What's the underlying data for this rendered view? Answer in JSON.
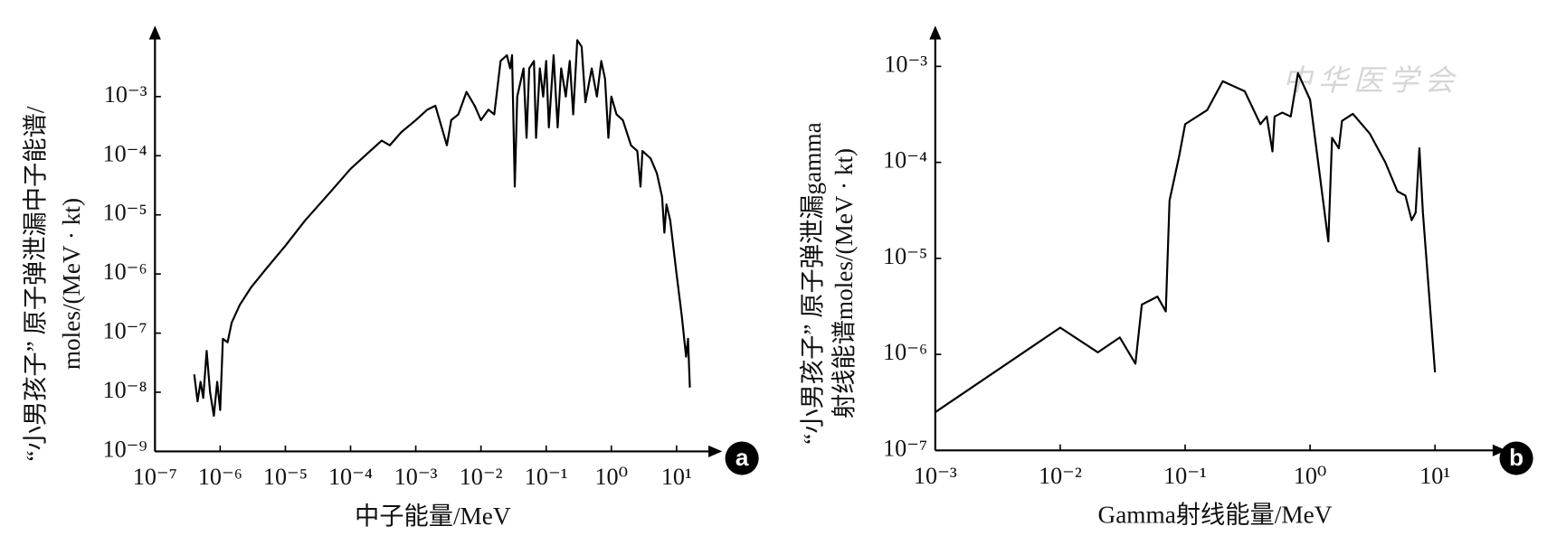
{
  "watermark": "中华医学会",
  "chart_data": [
    {
      "type": "line",
      "x_label": "中子能量/MeV",
      "y_label": [
        "“小男孩子” 原子弹泄漏中子能谱/",
        "moles/(MeV · kt)"
      ],
      "panel_label": "a",
      "xscale": "log",
      "yscale": "log",
      "xlim": [
        1e-07,
        33
      ],
      "ylim": [
        1e-09,
        0.01
      ],
      "xticks": [
        {
          "value": 1e-07,
          "label": "10⁻⁷"
        },
        {
          "value": 1e-06,
          "label": "10⁻⁶"
        },
        {
          "value": 1e-05,
          "label": "10⁻⁵"
        },
        {
          "value": 0.0001,
          "label": "10⁻⁴"
        },
        {
          "value": 0.001,
          "label": "10⁻³"
        },
        {
          "value": 0.01,
          "label": "10⁻²"
        },
        {
          "value": 0.1,
          "label": "10⁻¹"
        },
        {
          "value": 1,
          "label": "10⁰"
        },
        {
          "value": 10,
          "label": "10¹"
        }
      ],
      "yticks": [
        {
          "value": 1e-09,
          "label": "10⁻⁹"
        },
        {
          "value": 1e-08,
          "label": "10⁻⁸"
        },
        {
          "value": 1e-07,
          "label": "10⁻⁷"
        },
        {
          "value": 1e-06,
          "label": "10⁻⁶"
        },
        {
          "value": 1e-05,
          "label": "10⁻⁵"
        },
        {
          "value": 0.0001,
          "label": "10⁻⁴"
        },
        {
          "value": 0.001,
          "label": "10⁻³"
        }
      ],
      "x": [
        4e-07,
        4.5e-07,
        5e-07,
        5.5e-07,
        6.2e-07,
        7e-07,
        8e-07,
        9e-07,
        1e-06,
        1.1e-06,
        1.3e-06,
        1.5e-06,
        2e-06,
        3e-06,
        5e-06,
        1e-05,
        2e-05,
        5e-05,
        0.0001,
        0.0002,
        0.0003,
        0.0004,
        0.0006,
        0.001,
        0.0015,
        0.002,
        0.0025,
        0.003,
        0.0035,
        0.0045,
        0.006,
        0.008,
        0.01,
        0.013,
        0.016,
        0.02,
        0.025,
        0.028,
        0.03,
        0.033,
        0.036,
        0.045,
        0.05,
        0.055,
        0.065,
        0.07,
        0.08,
        0.09,
        0.1,
        0.11,
        0.13,
        0.15,
        0.17,
        0.2,
        0.23,
        0.26,
        0.3,
        0.35,
        0.4,
        0.5,
        0.6,
        0.7,
        0.8,
        0.9,
        1,
        1.2,
        1.5,
        2,
        2.5,
        2.8,
        3,
        4,
        5,
        6,
        6.5,
        7,
        8,
        10,
        12,
        14,
        15,
        16
      ],
      "series": [
        {
          "color": "#000000",
          "values": [
            2e-08,
            7e-09,
            1.5e-08,
            8e-09,
            5e-08,
            1e-08,
            4e-09,
            1.5e-08,
            5e-09,
            8e-08,
            7e-08,
            1.5e-07,
            3e-07,
            6e-07,
            1.2e-06,
            3e-06,
            8e-06,
            2.5e-05,
            6e-05,
            0.00012,
            0.00018,
            0.00015,
            0.00025,
            0.0004,
            0.0006,
            0.0007,
            0.0003,
            0.00015,
            0.0004,
            0.0005,
            0.0012,
            0.0007,
            0.0004,
            0.0006,
            0.0005,
            0.004,
            0.005,
            0.003,
            0.005,
            3e-05,
            0.001,
            0.003,
            0.0002,
            0.003,
            0.004,
            0.0002,
            0.003,
            0.001,
            0.004,
            0.0003,
            0.005,
            0.0003,
            0.003,
            0.001,
            0.004,
            0.0005,
            0.009,
            0.007,
            0.0008,
            0.003,
            0.001,
            0.004,
            0.002,
            0.0002,
            0.001,
            0.0005,
            0.0004,
            0.00015,
            0.00012,
            3e-05,
            0.00012,
            9e-05,
            5e-05,
            2e-05,
            5e-06,
            1.5e-05,
            8e-06,
            1e-06,
            2e-07,
            4e-08,
            8e-08,
            1.2e-08
          ]
        }
      ]
    },
    {
      "type": "line",
      "x_label": "Gamma射线能量/MeV",
      "y_label": [
        "“小男孩子” 原子弹泄漏gamma",
        "射线能谱moles/(MeV · kt)"
      ],
      "panel_label": "b",
      "xscale": "log",
      "yscale": "log",
      "xlim": [
        0.001,
        30
      ],
      "ylim": [
        1e-07,
        0.002
      ],
      "xticks": [
        {
          "value": 0.001,
          "label": "10⁻³"
        },
        {
          "value": 0.01,
          "label": "10⁻²"
        },
        {
          "value": 0.1,
          "label": "10⁻¹"
        },
        {
          "value": 1,
          "label": "10⁰"
        },
        {
          "value": 10,
          "label": "10¹"
        }
      ],
      "yticks": [
        {
          "value": 1e-07,
          "label": "10⁻⁷"
        },
        {
          "value": 1e-06,
          "label": "10⁻⁶"
        },
        {
          "value": 1e-05,
          "label": "10⁻⁵"
        },
        {
          "value": 0.0001,
          "label": "10⁻⁴"
        },
        {
          "value": 0.001,
          "label": "10⁻³"
        }
      ],
      "x": [
        0.001,
        0.01,
        0.02,
        0.03,
        0.04,
        0.045,
        0.06,
        0.07,
        0.075,
        0.09,
        0.1,
        0.15,
        0.2,
        0.3,
        0.4,
        0.45,
        0.5,
        0.52,
        0.6,
        0.7,
        0.8,
        1,
        1.4,
        1.5,
        1.7,
        1.8,
        2.2,
        3,
        4,
        5,
        5.8,
        6.5,
        7,
        7.5,
        8,
        10
      ],
      "series": [
        {
          "color": "#000000",
          "values": [
            2.5e-07,
            1.9e-06,
            1.05e-06,
            1.5e-06,
            8e-07,
            3.3e-06,
            4e-06,
            2.8e-06,
            4e-05,
            0.00012,
            0.00025,
            0.00035,
            0.0007,
            0.00055,
            0.00025,
            0.0003,
            0.00013,
            0.0003,
            0.00033,
            0.0003,
            0.00085,
            0.00045,
            1.5e-05,
            0.00018,
            0.00014,
            0.00027,
            0.00032,
            0.0002,
            0.0001,
            5e-05,
            4.5e-05,
            2.5e-05,
            3e-05,
            0.00014,
            3e-05,
            6.5e-07
          ]
        }
      ]
    }
  ]
}
